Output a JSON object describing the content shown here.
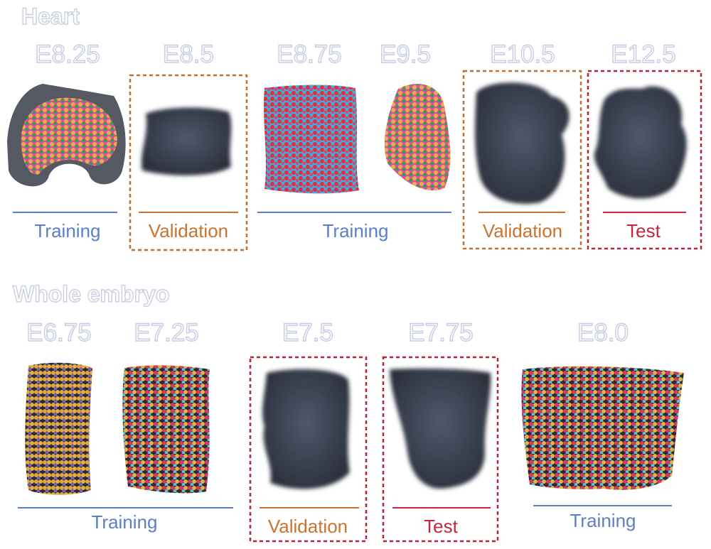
{
  "heart": {
    "title": "Heart",
    "stages": [
      "E8.25",
      "E8.5",
      "E8.75",
      "E9.5",
      "E10.5",
      "E12.5"
    ],
    "groups": [
      "Training",
      "Validation",
      "Training",
      "Validation",
      "Test"
    ]
  },
  "whole_embryo": {
    "title": "Whole embryo",
    "stages": [
      "E6.75",
      "E7.25",
      "E7.5",
      "E7.75",
      "E8.0"
    ],
    "groups": [
      "Training",
      "Validation",
      "Test",
      "Training"
    ]
  }
}
